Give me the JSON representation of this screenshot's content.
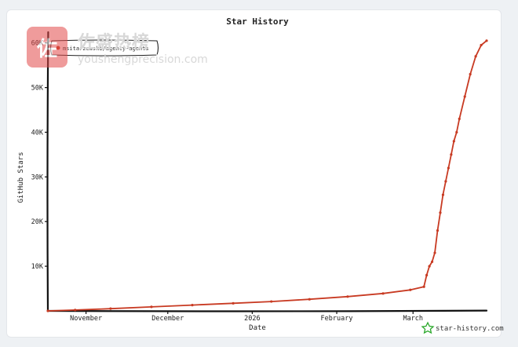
{
  "chart_data": {
    "type": "line",
    "title": "Star History",
    "xlabel": "Date",
    "ylabel": "GitHub Stars",
    "x_ticks": [
      {
        "label": "November",
        "date": "2025-11-01"
      },
      {
        "label": "December",
        "date": "2025-12-01"
      },
      {
        "label": "2026",
        "date": "2026-01-01"
      },
      {
        "label": "February",
        "date": "2026-02-01"
      },
      {
        "label": "March",
        "date": "2026-03-01"
      }
    ],
    "y_ticks": [
      {
        "label": "10K",
        "value": 10000
      },
      {
        "label": "20K",
        "value": 20000
      },
      {
        "label": "30K",
        "value": 30000
      },
      {
        "label": "40K",
        "value": 40000
      },
      {
        "label": "50K",
        "value": 50000
      },
      {
        "label": "60K",
        "value": 60000
      }
    ],
    "xlim": [
      "2025-10-18",
      "2026-03-28"
    ],
    "ylim": [
      0,
      61000
    ],
    "grid": false,
    "legend_position": "top-left",
    "series": [
      {
        "name": "msitarzewski/agency-agents",
        "color": "#c83a22",
        "points": [
          {
            "x": "2025-10-18",
            "y": 0
          },
          {
            "x": "2025-10-28",
            "y": 200
          },
          {
            "x": "2025-11-10",
            "y": 500
          },
          {
            "x": "2025-11-25",
            "y": 900
          },
          {
            "x": "2025-12-10",
            "y": 1300
          },
          {
            "x": "2025-12-25",
            "y": 1700
          },
          {
            "x": "2026-01-08",
            "y": 2100
          },
          {
            "x": "2026-01-22",
            "y": 2600
          },
          {
            "x": "2026-02-05",
            "y": 3200
          },
          {
            "x": "2026-02-18",
            "y": 3900
          },
          {
            "x": "2026-02-28",
            "y": 4700
          },
          {
            "x": "2026-03-05",
            "y": 5400
          },
          {
            "x": "2026-03-06",
            "y": 8000
          },
          {
            "x": "2026-03-07",
            "y": 10000
          },
          {
            "x": "2026-03-08",
            "y": 11000
          },
          {
            "x": "2026-03-09",
            "y": 13000
          },
          {
            "x": "2026-03-10",
            "y": 18000
          },
          {
            "x": "2026-03-11",
            "y": 22000
          },
          {
            "x": "2026-03-12",
            "y": 26000
          },
          {
            "x": "2026-03-13",
            "y": 29000
          },
          {
            "x": "2026-03-14",
            "y": 32000
          },
          {
            "x": "2026-03-15",
            "y": 35000
          },
          {
            "x": "2026-03-16",
            "y": 38000
          },
          {
            "x": "2026-03-17",
            "y": 40000
          },
          {
            "x": "2026-03-18",
            "y": 43000
          },
          {
            "x": "2026-03-20",
            "y": 48000
          },
          {
            "x": "2026-03-22",
            "y": 53000
          },
          {
            "x": "2026-03-24",
            "y": 57000
          },
          {
            "x": "2026-03-26",
            "y": 59500
          },
          {
            "x": "2026-03-28",
            "y": 60500
          }
        ]
      }
    ],
    "brand": "star-history.com",
    "watermark": {
      "cn": "佐盛热榜",
      "en": "youshengprecision.com"
    }
  }
}
